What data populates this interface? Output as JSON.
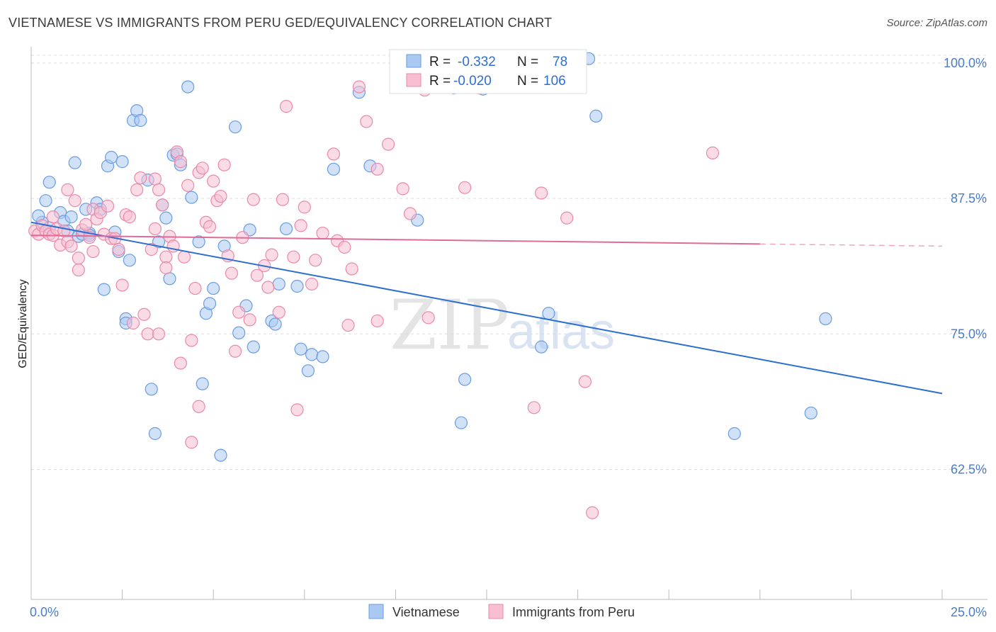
{
  "title": "VIETNAMESE VS IMMIGRANTS FROM PERU GED/EQUIVALENCY CORRELATION CHART",
  "source": "Source: ZipAtlas.com",
  "watermark": {
    "zip": "ZIP",
    "atlas": "atlas"
  },
  "legend_top": {
    "rows": [
      {
        "r_label": "R =",
        "r_value": "-0.332",
        "n_label": "N =",
        "n_value": "78",
        "color": "#a9c8f2",
        "stroke": "#6a9de0"
      },
      {
        "r_label": "R =",
        "r_value": "-0.020",
        "n_label": "N =",
        "n_value": "106",
        "color": "#f7bfd1",
        "stroke": "#ea89a8"
      }
    ]
  },
  "legend_bottom": [
    {
      "label": "Vietnamese",
      "color": "#a9c8f2",
      "stroke": "#6a9de0"
    },
    {
      "label": "Immigrants from Peru",
      "color": "#f7bfd1",
      "stroke": "#ea89a8"
    }
  ],
  "chart_data": {
    "type": "scatter",
    "title": "VIETNAMESE VS IMMIGRANTS FROM PERU GED/EQUIVALENCY CORRELATION CHART",
    "xlabel": "",
    "ylabel": "GED/Equivalency",
    "xlim": [
      0,
      25
    ],
    "ylim": [
      50.5,
      101.5
    ],
    "x_tick_labels": [
      {
        "value": 0,
        "label": "0.0%"
      },
      {
        "value": 25,
        "label": "25.0%"
      }
    ],
    "y_tick_labels": [
      {
        "value": 100,
        "label": "100.0%"
      },
      {
        "value": 87.5,
        "label": "87.5%"
      },
      {
        "value": 75,
        "label": "75.0%"
      },
      {
        "value": 62.5,
        "label": "62.5%"
      }
    ],
    "grid": true,
    "series": [
      {
        "name": "Vietnamese",
        "color": "#6a9de0",
        "fill": "#a9c8f2",
        "trend": {
          "x": [
            0.0,
            25.0
          ],
          "y": [
            85.3,
            69.5
          ],
          "color": "#2d6fd0"
        },
        "points": [
          [
            0.3,
            85.3
          ],
          [
            0.4,
            87.3
          ],
          [
            0.5,
            84.8
          ],
          [
            0.5,
            89.0
          ],
          [
            0.8,
            86.2
          ],
          [
            0.9,
            85.4
          ],
          [
            1.0,
            84.5
          ],
          [
            1.1,
            85.8
          ],
          [
            1.2,
            90.8
          ],
          [
            1.3,
            84.0
          ],
          [
            1.4,
            84.2
          ],
          [
            1.5,
            86.5
          ],
          [
            1.6,
            84.3
          ],
          [
            1.8,
            87.1
          ],
          [
            1.9,
            86.5
          ],
          [
            2.0,
            79.1
          ],
          [
            2.1,
            90.5
          ],
          [
            2.2,
            91.3
          ],
          [
            2.3,
            84.4
          ],
          [
            2.4,
            82.6
          ],
          [
            2.5,
            90.9
          ],
          [
            2.6,
            76.4
          ],
          [
            2.6,
            76.0
          ],
          [
            2.8,
            94.7
          ],
          [
            2.9,
            95.6
          ],
          [
            3.0,
            94.7
          ],
          [
            2.7,
            81.8
          ],
          [
            3.2,
            89.2
          ],
          [
            3.3,
            69.9
          ],
          [
            3.4,
            65.8
          ],
          [
            3.5,
            83.5
          ],
          [
            3.6,
            86.9
          ],
          [
            3.7,
            85.7
          ],
          [
            3.8,
            80.1
          ],
          [
            3.9,
            91.5
          ],
          [
            4.0,
            91.6
          ],
          [
            4.1,
            90.6
          ],
          [
            4.3,
            97.8
          ],
          [
            4.4,
            87.6
          ],
          [
            4.6,
            83.5
          ],
          [
            4.7,
            70.4
          ],
          [
            4.8,
            76.9
          ],
          [
            4.9,
            77.8
          ],
          [
            5.0,
            79.2
          ],
          [
            5.2,
            63.8
          ],
          [
            5.3,
            83.1
          ],
          [
            5.6,
            94.1
          ],
          [
            5.7,
            75.1
          ],
          [
            5.9,
            77.6
          ],
          [
            6.0,
            84.6
          ],
          [
            6.1,
            73.8
          ],
          [
            6.6,
            76.2
          ],
          [
            6.7,
            75.9
          ],
          [
            6.8,
            79.6
          ],
          [
            7.0,
            84.7
          ],
          [
            7.3,
            79.4
          ],
          [
            7.4,
            73.6
          ],
          [
            7.6,
            71.6
          ],
          [
            7.7,
            73.1
          ],
          [
            8.0,
            72.9
          ],
          [
            8.3,
            90.2
          ],
          [
            9.0,
            97.3
          ],
          [
            9.3,
            90.5
          ],
          [
            1.6,
            84.1
          ],
          [
            0.2,
            85.9
          ],
          [
            10.6,
            85.5
          ],
          [
            11.6,
            97.7
          ],
          [
            11.8,
            66.8
          ],
          [
            11.9,
            70.8
          ],
          [
            12.4,
            97.6
          ],
          [
            12.6,
            100.4
          ],
          [
            14.0,
            73.8
          ],
          [
            14.2,
            76.9
          ],
          [
            15.3,
            100.4
          ],
          [
            15.5,
            95.1
          ],
          [
            21.4,
            67.7
          ],
          [
            21.8,
            76.4
          ],
          [
            19.3,
            65.8
          ]
        ]
      },
      {
        "name": "Immigrants from Peru",
        "color": "#ea89a8",
        "fill": "#f7bfd1",
        "trend": {
          "x": [
            0.0,
            20.0
          ],
          "y": [
            84.1,
            83.3
          ],
          "dashed_to": [
            25.0,
            83.1
          ],
          "color": "#e06a98"
        },
        "points": [
          [
            0.1,
            84.5
          ],
          [
            0.2,
            84.2
          ],
          [
            0.3,
            85.0
          ],
          [
            0.4,
            84.5
          ],
          [
            0.5,
            84.2
          ],
          [
            0.6,
            85.8
          ],
          [
            0.6,
            84.1
          ],
          [
            0.7,
            84.7
          ],
          [
            0.8,
            83.2
          ],
          [
            0.9,
            84.5
          ],
          [
            1.0,
            83.5
          ],
          [
            1.1,
            83.1
          ],
          [
            1.0,
            88.3
          ],
          [
            1.2,
            87.3
          ],
          [
            1.3,
            80.9
          ],
          [
            1.3,
            82.0
          ],
          [
            1.4,
            84.6
          ],
          [
            1.5,
            85.1
          ],
          [
            1.6,
            83.9
          ],
          [
            1.7,
            86.5
          ],
          [
            1.7,
            82.6
          ],
          [
            1.8,
            85.6
          ],
          [
            1.9,
            86.2
          ],
          [
            2.0,
            84.2
          ],
          [
            2.1,
            86.8
          ],
          [
            2.2,
            83.8
          ],
          [
            2.3,
            83.8
          ],
          [
            2.4,
            82.8
          ],
          [
            2.5,
            79.5
          ],
          [
            2.6,
            86.0
          ],
          [
            2.7,
            85.8
          ],
          [
            2.8,
            76.0
          ],
          [
            3.0,
            89.4
          ],
          [
            2.9,
            88.3
          ],
          [
            3.1,
            76.8
          ],
          [
            3.2,
            75.0
          ],
          [
            3.3,
            82.8
          ],
          [
            3.4,
            84.7
          ],
          [
            3.4,
            89.3
          ],
          [
            3.5,
            88.3
          ],
          [
            3.5,
            75.0
          ],
          [
            3.6,
            86.9
          ],
          [
            3.7,
            82.1
          ],
          [
            3.7,
            81.1
          ],
          [
            3.8,
            84.0
          ],
          [
            3.9,
            83.1
          ],
          [
            4.0,
            91.8
          ],
          [
            4.1,
            90.9
          ],
          [
            4.1,
            72.3
          ],
          [
            4.2,
            82.1
          ],
          [
            4.3,
            88.7
          ],
          [
            4.4,
            74.4
          ],
          [
            4.5,
            79.2
          ],
          [
            4.6,
            89.9
          ],
          [
            4.7,
            90.3
          ],
          [
            4.8,
            85.3
          ],
          [
            4.9,
            84.9
          ],
          [
            5.0,
            89.1
          ],
          [
            5.1,
            87.3
          ],
          [
            5.2,
            87.7
          ],
          [
            5.3,
            90.6
          ],
          [
            5.4,
            82.2
          ],
          [
            5.5,
            80.6
          ],
          [
            5.6,
            73.4
          ],
          [
            5.7,
            77.0
          ],
          [
            5.8,
            83.9
          ],
          [
            6.0,
            76.3
          ],
          [
            6.1,
            87.4
          ],
          [
            6.2,
            80.4
          ],
          [
            6.4,
            81.3
          ],
          [
            6.5,
            79.3
          ],
          [
            6.6,
            82.3
          ],
          [
            6.8,
            77.0
          ],
          [
            6.9,
            87.4
          ],
          [
            7.0,
            96.0
          ],
          [
            7.2,
            82.1
          ],
          [
            7.4,
            85.0
          ],
          [
            7.5,
            86.7
          ],
          [
            7.7,
            79.6
          ],
          [
            7.8,
            81.8
          ],
          [
            8.0,
            84.3
          ],
          [
            8.3,
            91.6
          ],
          [
            8.4,
            83.6
          ],
          [
            8.6,
            83.0
          ],
          [
            8.7,
            75.8
          ],
          [
            8.8,
            81.0
          ],
          [
            9.0,
            97.8
          ],
          [
            9.2,
            94.6
          ],
          [
            9.5,
            90.2
          ],
          [
            9.8,
            92.5
          ],
          [
            10.2,
            88.4
          ],
          [
            10.4,
            86.1
          ],
          [
            10.8,
            97.5
          ],
          [
            10.9,
            76.5
          ],
          [
            11.9,
            88.5
          ],
          [
            12.3,
            97.7
          ],
          [
            13.8,
            68.2
          ],
          [
            14.0,
            88.0
          ],
          [
            14.7,
            85.7
          ],
          [
            15.2,
            70.6
          ],
          [
            15.4,
            58.5
          ],
          [
            18.7,
            91.7
          ],
          [
            9.5,
            76.2
          ],
          [
            7.3,
            68.0
          ],
          [
            4.6,
            68.3
          ],
          [
            4.4,
            65.0
          ]
        ]
      }
    ]
  }
}
